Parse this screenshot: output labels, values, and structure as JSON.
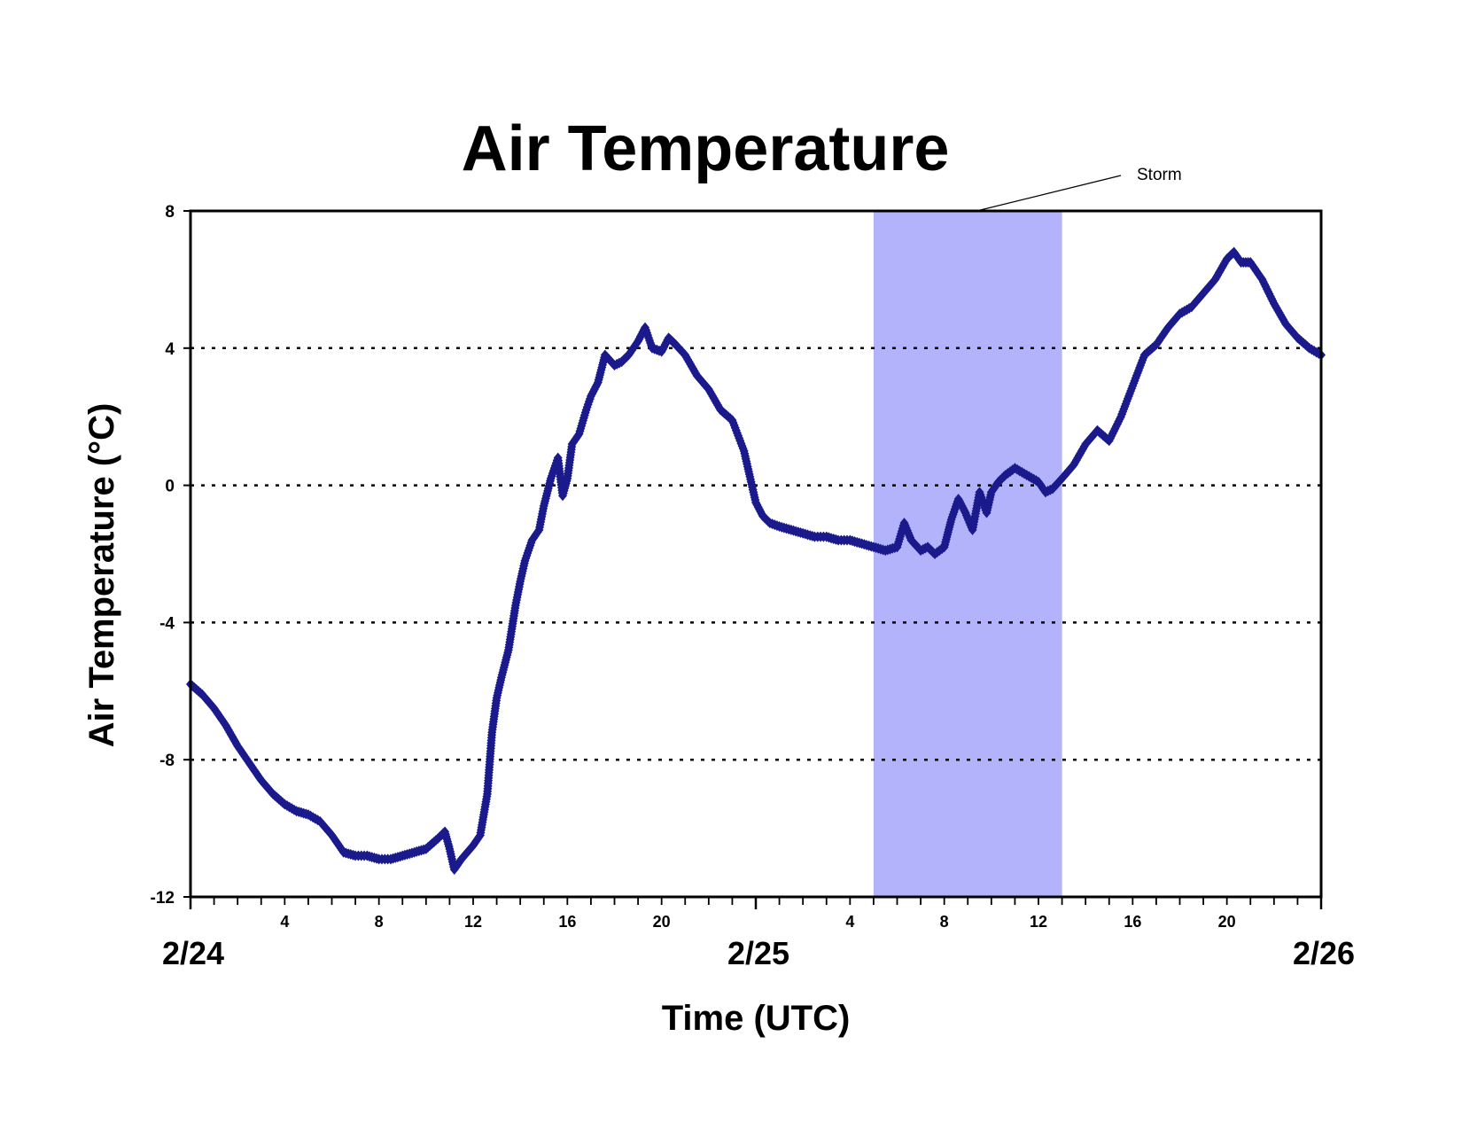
{
  "chart_data": {
    "type": "line",
    "title": "Air Temperature",
    "xlabel": "Time (UTC)",
    "ylabel": "Air Temperature (°C)",
    "xlim": [
      0,
      48
    ],
    "ylim": [
      -12,
      8
    ],
    "y_ticks": [
      8,
      4,
      0,
      -4,
      -8,
      -12
    ],
    "x_hour_ticks": [
      {
        "x": 4,
        "label": "4"
      },
      {
        "x": 8,
        "label": "8"
      },
      {
        "x": 12,
        "label": "12"
      },
      {
        "x": 16,
        "label": "16"
      },
      {
        "x": 20,
        "label": "20"
      },
      {
        "x": 28,
        "label": "4"
      },
      {
        "x": 32,
        "label": "8"
      },
      {
        "x": 36,
        "label": "12"
      },
      {
        "x": 40,
        "label": "16"
      },
      {
        "x": 44,
        "label": "20"
      }
    ],
    "day_labels": [
      {
        "x": 0,
        "label": "2/24"
      },
      {
        "x": 24,
        "label": "2/25"
      },
      {
        "x": 48,
        "label": "2/26"
      }
    ],
    "gridlines": "horizontal dotted",
    "shaded_region": {
      "label": "Storm",
      "x_start": 29,
      "x_end": 37,
      "color": "#b3b3fb"
    },
    "series_color": "#1a1a8c",
    "series": [
      {
        "x": [
          0,
          0.5,
          1,
          1.5,
          2,
          2.5,
          3,
          3.5,
          4,
          4.5,
          5,
          5.5,
          6,
          6.5,
          7,
          7.5,
          8,
          8.5,
          9,
          9.5,
          10,
          10.5,
          10.8,
          11,
          11.2,
          11.5,
          12,
          12.3,
          12.6,
          12.8,
          13,
          13.2,
          13.5,
          13.8,
          14,
          14.2,
          14.5,
          14.8,
          15,
          15.3,
          15.6,
          15.8,
          16,
          16.2,
          16.5,
          16.8,
          17,
          17.3,
          17.6,
          18,
          18.3,
          18.6,
          19,
          19.3,
          19.6,
          20,
          20.3,
          20.6,
          21,
          21.5,
          22,
          22.5,
          23,
          23.5,
          24,
          24.3,
          24.6,
          25,
          25.5,
          26,
          26.5,
          27,
          27.5,
          28,
          28.5,
          29,
          29.5,
          30,
          30.3,
          30.6,
          31,
          31.3,
          31.6,
          32,
          32.3,
          32.6,
          32.9,
          33.2,
          33.5,
          33.8,
          34,
          34.3,
          34.6,
          35,
          35.5,
          36,
          36.3,
          36.6,
          37,
          37.5,
          38,
          38.5,
          39,
          39.5,
          40,
          40.5,
          41,
          41.5,
          42,
          42.5,
          43,
          43.5,
          44,
          44.3,
          44.6,
          45,
          45.5,
          46,
          46.5,
          47,
          47.5,
          48
        ],
        "y": [
          -5.8,
          -6.1,
          -6.5,
          -7.0,
          -7.6,
          -8.1,
          -8.6,
          -9.0,
          -9.3,
          -9.5,
          -9.6,
          -9.8,
          -10.2,
          -10.7,
          -10.8,
          -10.8,
          -10.9,
          -10.9,
          -10.8,
          -10.7,
          -10.6,
          -10.3,
          -10.1,
          -10.6,
          -11.2,
          -10.9,
          -10.5,
          -10.2,
          -9.0,
          -7.2,
          -6.2,
          -5.6,
          -4.8,
          -3.5,
          -2.8,
          -2.2,
          -1.6,
          -1.3,
          -0.6,
          0.2,
          0.8,
          -0.3,
          0.2,
          1.2,
          1.5,
          2.2,
          2.6,
          3.0,
          3.8,
          3.5,
          3.6,
          3.8,
          4.2,
          4.6,
          4.0,
          3.9,
          4.3,
          4.1,
          3.8,
          3.2,
          2.8,
          2.2,
          1.9,
          1.0,
          -0.5,
          -0.9,
          -1.1,
          -1.2,
          -1.3,
          -1.4,
          -1.5,
          -1.5,
          -1.6,
          -1.6,
          -1.7,
          -1.8,
          -1.9,
          -1.8,
          -1.1,
          -1.6,
          -1.9,
          -1.8,
          -2.0,
          -1.8,
          -1.0,
          -0.4,
          -0.8,
          -1.3,
          -0.2,
          -0.8,
          -0.2,
          0.1,
          0.3,
          0.5,
          0.3,
          0.1,
          -0.2,
          -0.1,
          0.2,
          0.6,
          1.2,
          1.6,
          1.3,
          2.0,
          2.9,
          3.8,
          4.1,
          4.6,
          5.0,
          5.2,
          5.6,
          6.0,
          6.6,
          6.8,
          6.5,
          6.5,
          6.0,
          5.3,
          4.7,
          4.3,
          4.0,
          3.8
        ]
      }
    ]
  }
}
